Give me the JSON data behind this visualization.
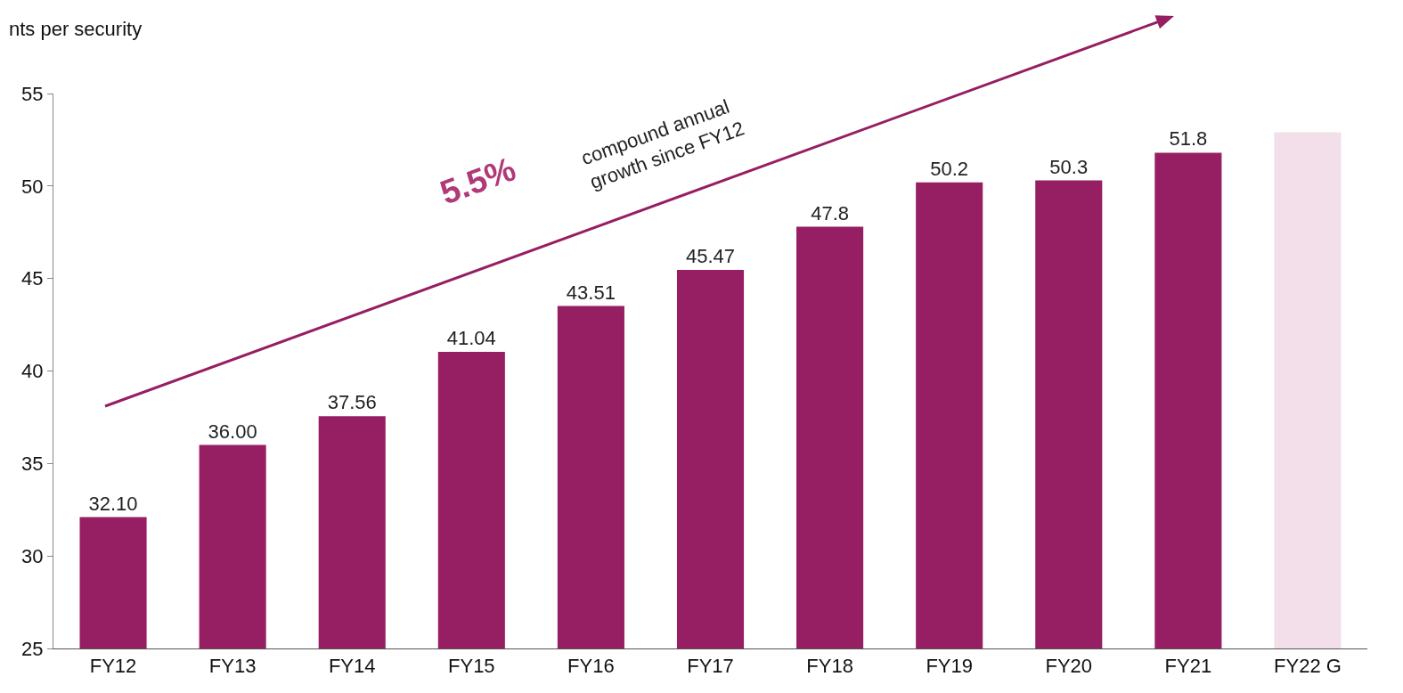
{
  "chart_data": {
    "type": "bar",
    "ylabel": "nts per security",
    "categories": [
      "FY12",
      "FY13",
      "FY14",
      "FY15",
      "FY16",
      "FY17",
      "FY18",
      "FY19",
      "FY20",
      "FY21",
      "FY22 G"
    ],
    "values": [
      32.1,
      36.0,
      37.56,
      41.04,
      43.51,
      45.47,
      47.8,
      50.2,
      50.3,
      51.8,
      52.9
    ],
    "colors": [
      "#961e62",
      "#961e62",
      "#961e62",
      "#961e62",
      "#961e62",
      "#961e62",
      "#961e62",
      "#961e62",
      "#961e62",
      "#961e62",
      "#f3dfea"
    ],
    "value_labels": [
      "32.10",
      "36.00",
      "37.56",
      "41.04",
      "43.51",
      "45.47",
      "47.8",
      "50.2",
      "50.3",
      "51.8",
      null
    ],
    "ylim": [
      25,
      55
    ],
    "yticks": [
      25,
      30,
      35,
      40,
      45,
      50,
      55
    ],
    "grid": false,
    "annotations": [
      "5.5%",
      "compound annual\ngrowth since FY12"
    ]
  }
}
